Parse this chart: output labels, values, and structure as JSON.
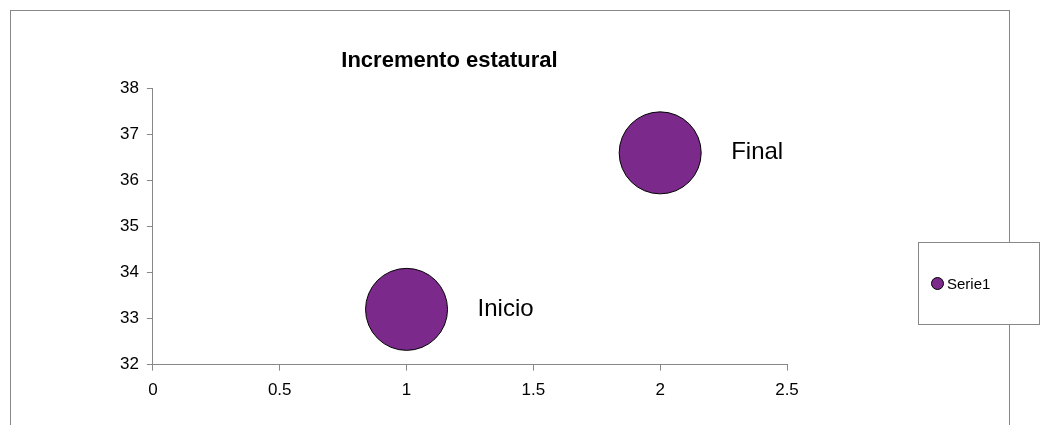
{
  "chart_data": {
    "type": "bubble",
    "title": "Incremento estatural",
    "x": [
      1,
      2
    ],
    "series": [
      {
        "name": "Serie1",
        "color": "#7b2a8b",
        "values": [
          33.2,
          36.6
        ],
        "sizes": [
          1,
          1
        ]
      }
    ],
    "xlim": [
      0,
      2.5
    ],
    "xticks": [
      0,
      0.5,
      1,
      1.5,
      2,
      2.5
    ],
    "ylim": [
      32,
      38
    ],
    "yticks": [
      32,
      33,
      34,
      35,
      36,
      37,
      38
    ],
    "grid": false,
    "legend": "right",
    "annotations": [
      "Inicio",
      "Final"
    ]
  }
}
